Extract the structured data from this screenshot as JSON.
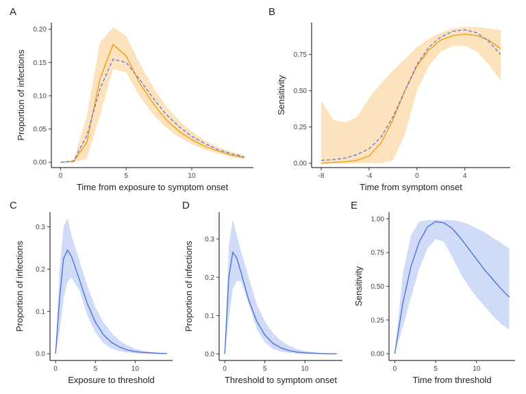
{
  "chart_data": [
    {
      "type": "line",
      "label": "A",
      "xlabel": "Time from exposure to symptom onset",
      "ylabel": "Proportion of infections",
      "x": [
        0,
        1,
        2,
        3,
        4,
        5,
        6,
        7,
        8,
        9,
        10,
        11,
        12,
        13,
        14
      ],
      "series": [
        {
          "color": "#f39c12",
          "linestyle": "solid",
          "values": [
            0,
            0.001,
            0.03,
            0.125,
            0.177,
            0.16,
            0.12,
            0.09,
            0.065,
            0.047,
            0.034,
            0.024,
            0.017,
            0.011,
            0.007
          ]
        },
        {
          "color": "#5b7fe0",
          "linestyle": "dashed",
          "values": [
            0,
            0.002,
            0.04,
            0.11,
            0.155,
            0.15,
            0.125,
            0.098,
            0.073,
            0.054,
            0.039,
            0.028,
            0.019,
            0.013,
            0.008
          ]
        }
      ],
      "bands": [
        {
          "color": "#fde3bd",
          "lower": [
            0,
            0,
            0.005,
            0.07,
            0.14,
            0.135,
            0.1,
            0.073,
            0.053,
            0.038,
            0.027,
            0.019,
            0.013,
            0.008,
            0.005
          ],
          "upper": [
            0,
            0.003,
            0.07,
            0.18,
            0.203,
            0.19,
            0.15,
            0.115,
            0.085,
            0.063,
            0.046,
            0.033,
            0.023,
            0.016,
            0.011
          ]
        }
      ],
      "xlim": [
        -0.7,
        14.7
      ],
      "xticks": [
        0,
        5,
        10
      ],
      "ylim": [
        -0.008,
        0.21
      ],
      "yticks": [
        {
          "value": 0,
          "label": "0.00"
        },
        {
          "value": 0.05,
          "label": "0.05"
        },
        {
          "value": 0.1,
          "label": "0.10"
        },
        {
          "value": 0.15,
          "label": "0.15"
        },
        {
          "value": 0.2,
          "label": "0.20"
        }
      ]
    },
    {
      "type": "line",
      "label": "B",
      "xlabel": "Time from symptom onset",
      "ylabel": "Sensitivity",
      "x": [
        -8,
        -7,
        -6,
        -5,
        -4,
        -3,
        -2,
        -1,
        0,
        1,
        2,
        3,
        4,
        5,
        6,
        7
      ],
      "series": [
        {
          "color": "#f39c12",
          "linestyle": "solid",
          "values": [
            0,
            0.005,
            0.01,
            0.02,
            0.05,
            0.14,
            0.3,
            0.5,
            0.67,
            0.78,
            0.85,
            0.88,
            0.89,
            0.88,
            0.85,
            0.79
          ]
        },
        {
          "color": "#5b7fe0",
          "linestyle": "dashed",
          "values": [
            0.02,
            0.025,
            0.035,
            0.06,
            0.1,
            0.18,
            0.32,
            0.5,
            0.68,
            0.8,
            0.87,
            0.91,
            0.92,
            0.9,
            0.84,
            0.75
          ]
        }
      ],
      "bands": [
        {
          "color": "#fde3bd",
          "lower": [
            0,
            0,
            0,
            0,
            0,
            0,
            0.02,
            0.2,
            0.5,
            0.67,
            0.77,
            0.81,
            0.81,
            0.77,
            0.68,
            0.57
          ],
          "upper": [
            0.43,
            0.3,
            0.28,
            0.32,
            0.45,
            0.55,
            0.64,
            0.72,
            0.8,
            0.86,
            0.9,
            0.93,
            0.94,
            0.94,
            0.93,
            0.92
          ]
        }
      ],
      "xlim": [
        -8.8,
        7.8
      ],
      "xticks": [
        -8,
        -4,
        0,
        4
      ],
      "ylim": [
        -0.03,
        0.97
      ],
      "yticks": [
        {
          "value": 0,
          "label": "0.00"
        },
        {
          "value": 0.25,
          "label": "0.25"
        },
        {
          "value": 0.5,
          "label": "0.50"
        },
        {
          "value": 0.75,
          "label": "0.75"
        }
      ]
    },
    {
      "type": "line",
      "label": "C",
      "xlabel": "Exposure to threshold",
      "ylabel": "Proportion of infections",
      "x": [
        0,
        0.5,
        1,
        1.5,
        2,
        3,
        4,
        5,
        6,
        7,
        8,
        9,
        10,
        11,
        12,
        13,
        14
      ],
      "series": [
        {
          "color": "#4a72d9",
          "linestyle": "solid",
          "values": [
            0,
            0.13,
            0.225,
            0.245,
            0.23,
            0.175,
            0.118,
            0.075,
            0.045,
            0.027,
            0.016,
            0.009,
            0.005,
            0.003,
            0.002,
            0.001,
            0.0005
          ]
        }
      ],
      "bands": [
        {
          "color": "#cfdbf7",
          "lower": [
            0,
            0.05,
            0.13,
            0.17,
            0.18,
            0.15,
            0.09,
            0.05,
            0.025,
            0.012,
            0.006,
            0.003,
            0.001,
            0,
            0,
            0,
            0
          ],
          "upper": [
            0,
            0.2,
            0.3,
            0.32,
            0.28,
            0.22,
            0.16,
            0.11,
            0.075,
            0.05,
            0.032,
            0.02,
            0.012,
            0.007,
            0.004,
            0.002,
            0.001
          ]
        }
      ],
      "xlim": [
        -0.7,
        14.7
      ],
      "xticks": [
        0,
        5,
        10
      ],
      "ylim": [
        -0.016,
        0.335
      ],
      "yticks": [
        {
          "value": 0,
          "label": "0.0"
        },
        {
          "value": 0.1,
          "label": "0.1"
        },
        {
          "value": 0.2,
          "label": "0.2"
        },
        {
          "value": 0.3,
          "label": "0.3"
        }
      ]
    },
    {
      "type": "line",
      "label": "D",
      "xlabel": "Threshold to symptom onset",
      "ylabel": "Proportion of infections",
      "x": [
        0,
        0.5,
        1,
        1.5,
        2,
        3,
        4,
        5,
        6,
        7,
        8,
        9,
        10,
        11,
        12,
        13,
        14
      ],
      "series": [
        {
          "color": "#4a72d9",
          "linestyle": "solid",
          "values": [
            0,
            0.2,
            0.265,
            0.25,
            0.215,
            0.14,
            0.085,
            0.05,
            0.028,
            0.016,
            0.009,
            0.005,
            0.003,
            0.002,
            0.001,
            0.0005,
            0.0003
          ]
        }
      ],
      "bands": [
        {
          "color": "#cfdbf7",
          "lower": [
            0,
            0.09,
            0.17,
            0.19,
            0.19,
            0.13,
            0.065,
            0.03,
            0.013,
            0.006,
            0.003,
            0.001,
            0,
            0,
            0,
            0,
            0
          ],
          "upper": [
            0,
            0.28,
            0.35,
            0.31,
            0.27,
            0.2,
            0.13,
            0.085,
            0.055,
            0.035,
            0.022,
            0.013,
            0.008,
            0.005,
            0.003,
            0.002,
            0.001
          ]
        }
      ],
      "xlim": [
        -0.7,
        14.7
      ],
      "xticks": [
        0,
        5,
        10
      ],
      "ylim": [
        -0.017,
        0.37
      ],
      "yticks": [
        {
          "value": 0,
          "label": "0.0"
        },
        {
          "value": 0.1,
          "label": "0.1"
        },
        {
          "value": 0.2,
          "label": "0.2"
        },
        {
          "value": 0.3,
          "label": "0.3"
        }
      ]
    },
    {
      "type": "line",
      "label": "E",
      "xlabel": "Time from threshold",
      "ylabel": "Sensitivity",
      "x": [
        0,
        1,
        2,
        3,
        4,
        5,
        6,
        7,
        8,
        9,
        10,
        11,
        12,
        13,
        14
      ],
      "series": [
        {
          "color": "#4a72d9",
          "linestyle": "solid",
          "values": [
            0,
            0.38,
            0.65,
            0.83,
            0.94,
            0.98,
            0.97,
            0.93,
            0.86,
            0.78,
            0.7,
            0.62,
            0.55,
            0.48,
            0.42
          ]
        }
      ],
      "bands": [
        {
          "color": "#cfdbf7",
          "lower": [
            0,
            0.2,
            0.42,
            0.63,
            0.78,
            0.85,
            0.83,
            0.72,
            0.6,
            0.5,
            0.42,
            0.35,
            0.28,
            0.22,
            0.18
          ],
          "upper": [
            0,
            0.6,
            0.88,
            0.98,
            0.99,
            0.99,
            0.99,
            0.99,
            0.98,
            0.96,
            0.93,
            0.9,
            0.86,
            0.82,
            0.78
          ]
        }
      ],
      "xlim": [
        -0.7,
        14.7
      ],
      "xticks": [
        0,
        5,
        10
      ],
      "ylim": [
        -0.05,
        1.05
      ],
      "yticks": [
        {
          "value": 0,
          "label": "0.00"
        },
        {
          "value": 0.25,
          "label": "0.25"
        },
        {
          "value": 0.5,
          "label": "0.50"
        },
        {
          "value": 0.75,
          "label": "0.75"
        },
        {
          "value": 1,
          "label": "1.00"
        }
      ]
    }
  ]
}
